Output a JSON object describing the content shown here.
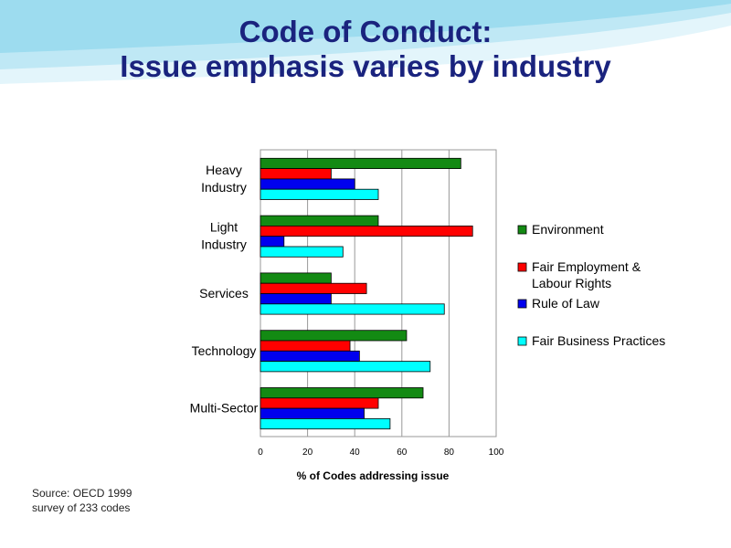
{
  "slide": {
    "title_line1": "Code of Conduct:",
    "title_line2": "Issue emphasis varies by industry",
    "source_line1": "Source:  OECD 1999",
    "source_line2": "survey of 233 codes"
  },
  "colors": {
    "title": "#1a237e",
    "decor_light": "#bfe8f5",
    "decor_mid": "#7fd0ea"
  },
  "chart_data": {
    "type": "bar",
    "orientation": "horizontal",
    "categories": [
      [
        "Heavy",
        "Industry"
      ],
      [
        "Light",
        "Industry"
      ],
      [
        "Services"
      ],
      [
        "Technology"
      ],
      [
        "Multi-Sector"
      ]
    ],
    "series": [
      {
        "name": "Environment",
        "legend_lines": [
          "Environment"
        ],
        "color": "#138a13",
        "values": [
          85,
          50,
          30,
          62,
          69
        ]
      },
      {
        "name": "Fair Employment & Labour Rights",
        "legend_lines": [
          "Fair Employment &",
          "Labour Rights"
        ],
        "color": "#ff0000",
        "values": [
          30,
          90,
          45,
          38,
          50
        ]
      },
      {
        "name": "Rule of Law",
        "legend_lines": [
          "Rule of Law"
        ],
        "color": "#0000ee",
        "values": [
          40,
          10,
          30,
          42,
          44
        ]
      },
      {
        "name": "Fair Business Practices",
        "legend_lines": [
          "Fair Business Practices"
        ],
        "color": "#00ffff",
        "values": [
          50,
          35,
          78,
          72,
          55
        ]
      }
    ],
    "xlabel": "% of Codes addressing issue",
    "ylabel": "",
    "xlim": [
      0,
      100
    ],
    "xticks": [
      0,
      20,
      40,
      60,
      80,
      100
    ],
    "grid": true,
    "legend_position": "right"
  }
}
